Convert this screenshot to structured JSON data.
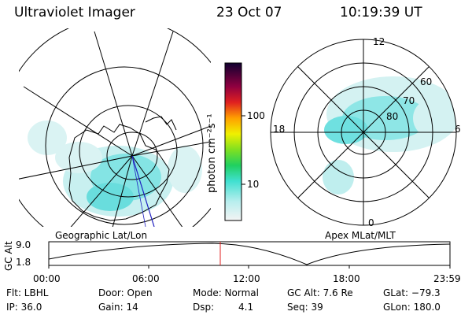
{
  "header": {
    "instrument": "Ultraviolet Imager",
    "date": "23 Oct 07",
    "time": "10:19:39 UT"
  },
  "colorbar": {
    "unit_label": "photon cm⁻²s⁻¹",
    "ticks": [
      "100",
      "10"
    ]
  },
  "left_map": {
    "caption": "Geographic Lat/Lon"
  },
  "right_map": {
    "caption": "Apex MLat/MLT",
    "mlt_labels": [
      "12",
      "18",
      "6",
      "0"
    ],
    "mlat_labels": [
      "60",
      "70",
      "80"
    ]
  },
  "timeline": {
    "ylabel": "GC Alt",
    "ytick_top": "9.0",
    "ytick_bottom": "1.8",
    "xticks": [
      "00:00",
      "06:00",
      "12:00",
      "18:00",
      "23:59"
    ]
  },
  "info": {
    "filter": "Flt: LBHL",
    "ip": "IP: 36.0",
    "door": "Door: Open",
    "gain": "Gain: 14",
    "mode": "Mode: Normal",
    "dsp_label": "Dsp:",
    "dsp_value": "4.1",
    "gc_alt": "GC Alt: 7.6 Re",
    "seq": "Seq: 39",
    "glat": "GLat: −79.3",
    "glon": "GLon: 180.0"
  },
  "colors": {
    "aurora": "#4fe0e0",
    "current_time_marker": "#e02020",
    "meridian": "#2020c0"
  }
}
